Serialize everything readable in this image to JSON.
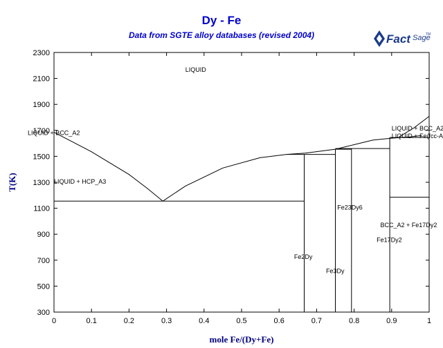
{
  "header": {
    "title": "Dy - Fe",
    "subtitle": "Data from SGTE alloy databases (revised 2004)",
    "title_color": "#0000cc"
  },
  "logo": {
    "icon": "factsage-logo-icon",
    "text_main": "Fact",
    "text_sage": "Sage",
    "trademark": "TM",
    "color": "#1a3a8a"
  },
  "chart_data": {
    "type": "phase-diagram",
    "xlabel": "mole Fe/(Dy+Fe)",
    "ylabel": "T(K)",
    "axis_label_color": "#000080",
    "xlim": [
      0,
      1
    ],
    "ylim": [
      300,
      2300
    ],
    "xticks": [
      "0",
      "0.1",
      "0.2",
      "0.3",
      "0.4",
      "0.5",
      "0.6",
      "0.7",
      "0.8",
      "0.9",
      "1"
    ],
    "yticks": [
      "300",
      "500",
      "700",
      "900",
      "1100",
      "1300",
      "1500",
      "1700",
      "1900",
      "2100",
      "2300"
    ],
    "grid": false,
    "lines": [
      {
        "name": "liquidus-dy-side",
        "points": [
          [
            0,
            1685
          ],
          [
            0.1,
            1535
          ],
          [
            0.2,
            1360
          ],
          [
            0.25,
            1250
          ],
          [
            0.29,
            1155
          ]
        ]
      },
      {
        "name": "liquidus-mid",
        "points": [
          [
            0.29,
            1155
          ],
          [
            0.35,
            1270
          ],
          [
            0.45,
            1410
          ],
          [
            0.55,
            1490
          ],
          [
            0.62,
            1515
          ],
          [
            0.67,
            1525
          ],
          [
            0.75,
            1555
          ],
          [
            0.8,
            1590
          ],
          [
            0.85,
            1625
          ],
          [
            0.9,
            1640
          ],
          [
            0.95,
            1650
          ],
          [
            0.98,
            1660
          ]
        ]
      },
      {
        "name": "liquidus-fe-side",
        "points": [
          [
            0.92,
            1650
          ],
          [
            0.96,
            1720
          ],
          [
            1,
            1808
          ]
        ]
      },
      {
        "name": "eutectic-line",
        "points": [
          [
            0,
            1155
          ],
          [
            0.667,
            1155
          ]
        ]
      },
      {
        "name": "fe2dy-peritectic",
        "points": [
          [
            0.62,
            1515
          ],
          [
            0.75,
            1515
          ]
        ]
      },
      {
        "name": "fe3dy-peritectic",
        "points": [
          [
            0.75,
            1555
          ],
          [
            0.793,
            1555
          ]
        ]
      },
      {
        "name": "fe23dy6-peritectic",
        "points": [
          [
            0.75,
            1560
          ],
          [
            0.895,
            1560
          ]
        ]
      },
      {
        "name": "fe17dy2-top",
        "points": [
          [
            0.895,
            1645
          ],
          [
            1,
            1645
          ]
        ]
      },
      {
        "name": "bcc-fcc-transition",
        "points": [
          [
            0.895,
            1185
          ],
          [
            1,
            1185
          ]
        ]
      },
      {
        "name": "fe2dy-line",
        "points": [
          [
            0.667,
            300
          ],
          [
            0.667,
            1515
          ]
        ]
      },
      {
        "name": "fe3dy-line",
        "points": [
          [
            0.75,
            300
          ],
          [
            0.75,
            1555
          ]
        ]
      },
      {
        "name": "fe23dy6-line",
        "points": [
          [
            0.793,
            300
          ],
          [
            0.793,
            1560
          ]
        ]
      },
      {
        "name": "fe17dy2-line",
        "points": [
          [
            0.895,
            300
          ],
          [
            0.895,
            1645
          ]
        ]
      }
    ],
    "annotations": [
      {
        "text": "LIQUID",
        "x": 0.35,
        "y": 2150
      },
      {
        "text": "LIQUID + BCC_A2",
        "x": -0.07,
        "y": 1665
      },
      {
        "text": "LIQUID + HCP_A3",
        "x": 0.0,
        "y": 1290
      },
      {
        "text": "Fe2Dy",
        "x": 0.64,
        "y": 710
      },
      {
        "text": "Fe3Dy",
        "x": 0.725,
        "y": 600
      },
      {
        "text": "Fe23Dy6",
        "x": 0.755,
        "y": 1090
      },
      {
        "text": "BCC_A2 + Fe17Dy2",
        "x": 0.87,
        "y": 955
      },
      {
        "text": "Fe17Dy2",
        "x": 0.86,
        "y": 840
      },
      {
        "text": "LIQUID + BCC_A2",
        "x": 0.9,
        "y": 1700
      },
      {
        "text": "LIQUID + Fe(fcc-A1",
        "x": 0.9,
        "y": 1640
      }
    ]
  }
}
